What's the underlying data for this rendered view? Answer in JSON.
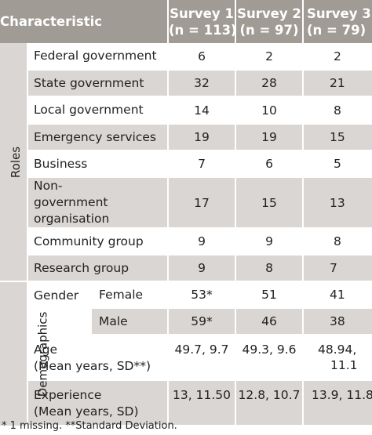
{
  "header": {
    "characteristic": "Characteristic",
    "surveys": [
      {
        "name": "Survey 1",
        "n": "(n = 113)"
      },
      {
        "name": "Survey 2",
        "n": "(n = 97)"
      },
      {
        "name": "Survey 3",
        "n": "(n = 79)"
      }
    ]
  },
  "roles": {
    "group_label": "Roles",
    "rows": [
      {
        "label": "Federal government",
        "values": [
          "6",
          "2",
          "2"
        ]
      },
      {
        "label": "State government",
        "values": [
          "32",
          "28",
          "21"
        ]
      },
      {
        "label": "Local government",
        "values": [
          "14",
          "10",
          "8"
        ]
      },
      {
        "label": "Emergency services",
        "values": [
          "19",
          "19",
          "15"
        ]
      },
      {
        "label": "Business",
        "values": [
          "7",
          "6",
          "5"
        ]
      },
      {
        "label": "Non-government organisation",
        "values": [
          "17",
          "15",
          "13"
        ]
      },
      {
        "label": "Community group",
        "values": [
          "9",
          "9",
          "8"
        ]
      },
      {
        "label": "Research group",
        "values": [
          "9",
          "8",
          "7"
        ]
      }
    ]
  },
  "demographics": {
    "group_label": "Demographics",
    "gender": {
      "label": "Gender",
      "rows": [
        {
          "label": "Female",
          "values": [
            "53*",
            "51",
            "41"
          ]
        },
        {
          "label": "Male",
          "values": [
            "59*",
            "46",
            "38"
          ]
        }
      ]
    },
    "age": {
      "label_line1": "Age",
      "label_line2": "(Mean years, SD**)",
      "values": [
        "49.7, 9.7",
        "49.3, 9.6",
        "48.94,\n11.1"
      ],
      "value3_line1": "48.94,",
      "value3_line2": "11.1"
    },
    "experience": {
      "label_line1": "Experience",
      "label_line2": "(Mean years, SD)",
      "values": [
        "13, 11.50",
        "12.8, 10.7",
        "13.9, 11.8"
      ]
    }
  },
  "footnote": "* 1 missing. **Standard Deviation."
}
